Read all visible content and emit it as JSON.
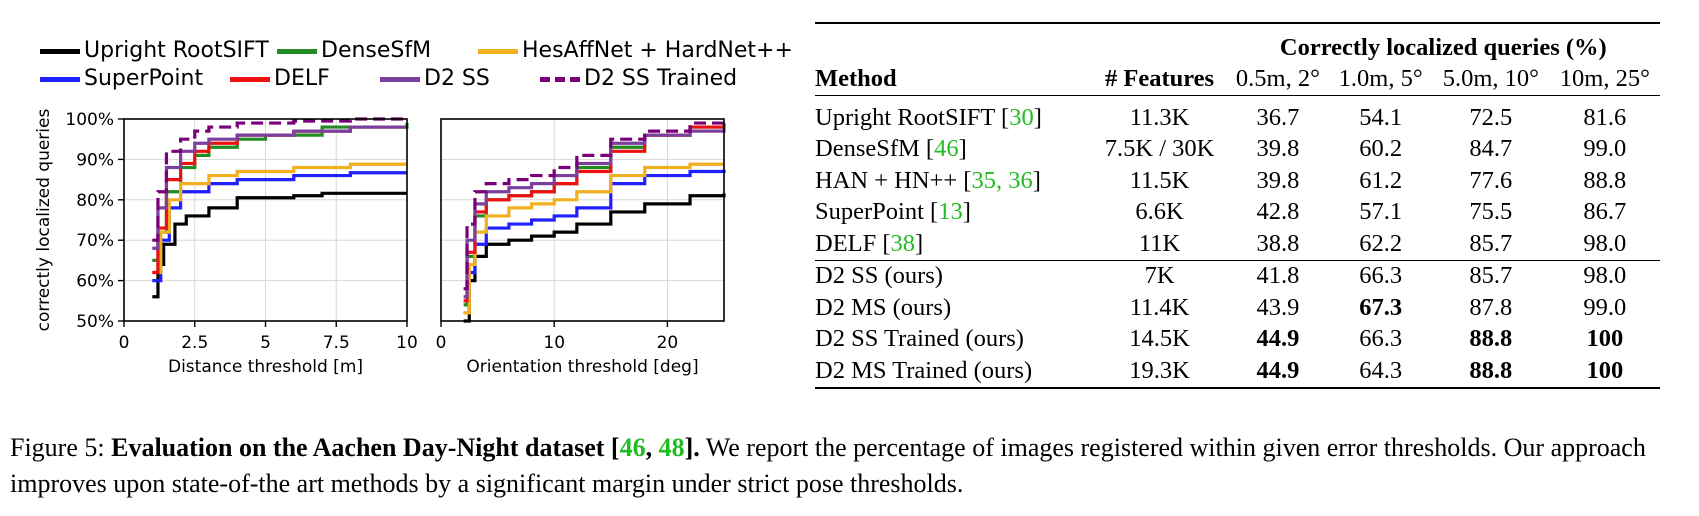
{
  "legend": [
    {
      "label": "Upright RootSIFT",
      "color": "#000000",
      "dashed": false
    },
    {
      "label": "DenseSfM",
      "color": "#228b22",
      "dashed": false
    },
    {
      "label": "HesAffNet + HardNet++",
      "color": "#f0b020",
      "dashed": false
    },
    {
      "label": "SuperPoint",
      "color": "#1f1fff",
      "dashed": false
    },
    {
      "label": "DELF",
      "color": "#ee1111",
      "dashed": false
    },
    {
      "label": "D2 SS",
      "color": "#7b3f9e",
      "dashed": false
    },
    {
      "label": "D2 SS Trained",
      "color": "#7a007a",
      "dashed": true
    }
  ],
  "chart_data": [
    {
      "type": "line",
      "xlabel": "Distance threshold [m]",
      "ylabel": "correctly localized queries",
      "xlim": [
        0,
        10
      ],
      "ylim": [
        50,
        100
      ],
      "xticks": [
        "0",
        "2.5",
        "5",
        "7.5",
        "10"
      ],
      "yticks": [
        "50%",
        "60%",
        "70%",
        "80%",
        "90%",
        "100%"
      ],
      "series": [
        {
          "name": "Upright RootSIFT",
          "x": [
            1,
            1.2,
            1.4,
            1.8,
            2.2,
            3,
            4,
            5,
            6,
            7,
            8,
            10
          ],
          "y": [
            56,
            64,
            69,
            74,
            76,
            78,
            80.5,
            80.5,
            81,
            81.6,
            81.6,
            81.6
          ]
        },
        {
          "name": "DenseSfM",
          "x": [
            1,
            1.2,
            1.5,
            2,
            2.5,
            3,
            4,
            5,
            7,
            10
          ],
          "y": [
            65,
            72,
            82,
            88,
            91,
            93,
            95,
            96,
            98,
            99
          ]
        },
        {
          "name": "HesAffNet + HardNet++",
          "x": [
            1,
            1.3,
            1.6,
            2,
            3,
            4,
            6,
            8,
            10
          ],
          "y": [
            62,
            72,
            80,
            84,
            86,
            87,
            88,
            88.8,
            88.8
          ]
        },
        {
          "name": "SuperPoint",
          "x": [
            1,
            1.3,
            1.6,
            2,
            3,
            4,
            6,
            8,
            10
          ],
          "y": [
            60,
            70,
            78,
            82,
            84,
            85,
            86,
            86.7,
            86.7
          ]
        },
        {
          "name": "DELF",
          "x": [
            1,
            1.2,
            1.5,
            2,
            2.5,
            3,
            4,
            6,
            8,
            10
          ],
          "y": [
            62,
            73,
            85,
            89,
            92,
            94,
            96,
            97,
            98,
            98
          ]
        },
        {
          "name": "D2 SS",
          "x": [
            1,
            1.2,
            1.5,
            2,
            2.5,
            3,
            4,
            6,
            8,
            10
          ],
          "y": [
            68,
            78,
            88,
            92,
            94,
            95,
            96,
            97,
            98,
            98
          ]
        },
        {
          "name": "D2 SS Trained",
          "x": [
            1,
            1.2,
            1.5,
            2,
            2.5,
            3,
            4,
            6,
            8,
            10
          ],
          "y": [
            70,
            82,
            92,
            95,
            97,
            98,
            99,
            99.5,
            100,
            100
          ]
        }
      ]
    },
    {
      "type": "line",
      "xlabel": "Orientation threshold [deg]",
      "ylabel": "",
      "xlim": [
        0,
        25
      ],
      "ylim": [
        50,
        100
      ],
      "xticks": [
        "0",
        "10",
        "20"
      ],
      "yticks": [],
      "series": [
        {
          "name": "Upright RootSIFT",
          "x": [
            2,
            2.5,
            3,
            4,
            6,
            8,
            10,
            12,
            15,
            18,
            22,
            25
          ],
          "y": [
            50,
            60,
            66,
            69,
            70,
            71,
            72,
            74,
            77,
            79,
            81,
            81.6
          ]
        },
        {
          "name": "DenseSfM",
          "x": [
            2,
            2.3,
            3,
            4,
            6,
            8,
            10,
            12,
            15,
            18,
            22,
            25
          ],
          "y": [
            54,
            66,
            76,
            80,
            81,
            82,
            84,
            88,
            93,
            96,
            98,
            99
          ]
        },
        {
          "name": "HesAffNet + HardNet++",
          "x": [
            2,
            2.5,
            3,
            4,
            6,
            8,
            10,
            12,
            15,
            18,
            22,
            25
          ],
          "y": [
            52,
            64,
            72,
            76,
            78,
            79,
            80,
            82,
            86,
            88,
            88.8,
            88.8
          ]
        },
        {
          "name": "SuperPoint",
          "x": [
            2,
            2.5,
            3,
            4,
            6,
            8,
            10,
            12,
            15,
            18,
            22,
            25
          ],
          "y": [
            52,
            62,
            69,
            73,
            74,
            75,
            76,
            78,
            84,
            86,
            87,
            87.5
          ]
        },
        {
          "name": "DELF",
          "x": [
            2,
            2.3,
            3,
            4,
            6,
            8,
            10,
            12,
            15,
            18,
            22,
            25
          ],
          "y": [
            55,
            67,
            77,
            80,
            81,
            82,
            84,
            87,
            92,
            96,
            98,
            98
          ]
        },
        {
          "name": "D2 SS",
          "x": [
            2,
            2.3,
            3,
            4,
            6,
            8,
            10,
            12,
            15,
            18,
            22,
            25
          ],
          "y": [
            56,
            70,
            79,
            82,
            83,
            84,
            86,
            89,
            94,
            96,
            97,
            98
          ]
        },
        {
          "name": "D2 SS Trained",
          "x": [
            2,
            2.3,
            3,
            4,
            6,
            8,
            10,
            12,
            15,
            18,
            22,
            25
          ],
          "y": [
            58,
            74,
            82,
            84,
            85,
            86,
            88,
            91,
            95,
            97,
            99,
            99.5
          ]
        }
      ]
    },
    {
      "type": "table",
      "header_group": "Correctly localized queries (%)",
      "columns": [
        "Method",
        "# Features",
        "0.5m, 2°",
        "1.0m, 5°",
        "5.0m, 10°",
        "10m, 25°"
      ],
      "rows": [
        {
          "method": "Upright RootSIFT",
          "cite": "30",
          "features": "11.3K",
          "v": [
            "36.7",
            "54.1",
            "72.5",
            "81.6"
          ],
          "bold": [
            false,
            false,
            false,
            false
          ]
        },
        {
          "method": "DenseSfM",
          "cite": "46",
          "features": "7.5K / 30K",
          "v": [
            "39.8",
            "60.2",
            "84.7",
            "99.0"
          ],
          "bold": [
            false,
            false,
            false,
            false
          ]
        },
        {
          "method": "HAN + HN++",
          "cite": "35, 36",
          "features": "11.5K",
          "v": [
            "39.8",
            "61.2",
            "77.6",
            "88.8"
          ],
          "bold": [
            false,
            false,
            false,
            false
          ]
        },
        {
          "method": "SuperPoint",
          "cite": "13",
          "features": "6.6K",
          "v": [
            "42.8",
            "57.1",
            "75.5",
            "86.7"
          ],
          "bold": [
            false,
            false,
            false,
            false
          ]
        },
        {
          "method": "DELF",
          "cite": "38",
          "features": "11K",
          "v": [
            "38.8",
            "62.2",
            "85.7",
            "98.0"
          ],
          "bold": [
            false,
            false,
            false,
            false
          ]
        },
        {
          "method": "D2 SS (ours)",
          "cite": "",
          "features": "7K",
          "v": [
            "41.8",
            "66.3",
            "85.7",
            "98.0"
          ],
          "bold": [
            false,
            false,
            false,
            false
          ]
        },
        {
          "method": "D2 MS (ours)",
          "cite": "",
          "features": "11.4K",
          "v": [
            "43.9",
            "67.3",
            "87.8",
            "99.0"
          ],
          "bold": [
            false,
            true,
            false,
            false
          ]
        },
        {
          "method": "D2 SS Trained (ours)",
          "cite": "",
          "features": "14.5K",
          "v": [
            "44.9",
            "66.3",
            "88.8",
            "100"
          ],
          "bold": [
            true,
            false,
            true,
            true
          ]
        },
        {
          "method": "D2 MS Trained (ours)",
          "cite": "",
          "features": "19.3K",
          "v": [
            "44.9",
            "64.3",
            "88.8",
            "100"
          ],
          "bold": [
            true,
            false,
            true,
            true
          ]
        }
      ]
    }
  ],
  "caption": {
    "prefix": "Figure 5: ",
    "bold_title": "Evaluation on the Aachen Day-Night dataset [",
    "cite1": "46",
    "sep": ", ",
    "cite2": "48",
    "bold_end": "].",
    "body": " We report the percentage of images registered within given error thresholds. Our approach improves upon state-of-the art methods by a significant margin under strict pose thresholds."
  }
}
